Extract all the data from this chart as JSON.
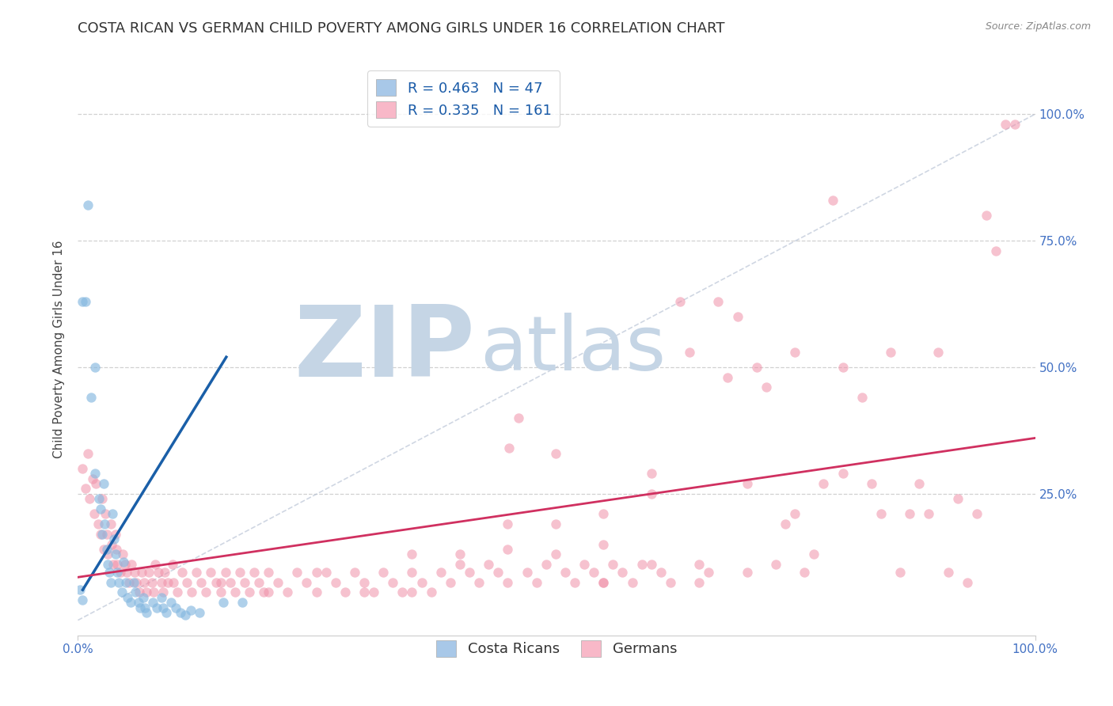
{
  "title": "COSTA RICAN VS GERMAN CHILD POVERTY AMONG GIRLS UNDER 16 CORRELATION CHART",
  "source": "Source: ZipAtlas.com",
  "ylabel": "Child Poverty Among Girls Under 16",
  "xlim": [
    0.0,
    1.0
  ],
  "ylim": [
    -0.03,
    1.1
  ],
  "xticks": [
    0.0,
    1.0
  ],
  "xticklabels": [
    "0.0%",
    "100.0%"
  ],
  "yticks": [
    0.25,
    0.5,
    0.75,
    1.0
  ],
  "yticklabels": [
    "25.0%",
    "50.0%",
    "75.0%",
    "100.0%"
  ],
  "cr_scatter_color": "#85b8e0",
  "cr_scatter_alpha": 0.65,
  "cr_scatter_size": 80,
  "cr_line_color": "#1a5fa8",
  "cr_line_x": [
    0.005,
    0.155
  ],
  "cr_line_y": [
    0.06,
    0.52
  ],
  "de_scatter_color": "#f090a8",
  "de_scatter_alpha": 0.55,
  "de_scatter_size": 80,
  "de_line_color": "#d03060",
  "de_line_x": [
    0.0,
    1.0
  ],
  "de_line_y": [
    0.085,
    0.36
  ],
  "diagonal_color": "#b0bcd0",
  "diagonal_alpha": 0.6,
  "watermark_zip_color": "#c5d5e5",
  "watermark_atlas_color": "#c5d5e5",
  "background_color": "#ffffff",
  "grid_color": "#cccccc",
  "title_fontsize": 13,
  "axis_label_fontsize": 11,
  "tick_label_fontsize": 11,
  "source_fontsize": 9,
  "legend_top_entries": [
    {
      "label_r": "R = 0.463",
      "label_n": "N = 47",
      "facecolor": "#a8c8e8"
    },
    {
      "label_r": "R = 0.335",
      "label_n": "N = 161",
      "facecolor": "#f8b8c8"
    }
  ],
  "cr_points": [
    [
      0.005,
      0.63
    ],
    [
      0.008,
      0.63
    ],
    [
      0.01,
      0.82
    ],
    [
      0.014,
      0.44
    ],
    [
      0.018,
      0.5
    ],
    [
      0.018,
      0.29
    ],
    [
      0.022,
      0.24
    ],
    [
      0.024,
      0.22
    ],
    [
      0.025,
      0.17
    ],
    [
      0.027,
      0.27
    ],
    [
      0.028,
      0.19
    ],
    [
      0.03,
      0.14
    ],
    [
      0.031,
      0.11
    ],
    [
      0.033,
      0.095
    ],
    [
      0.034,
      0.075
    ],
    [
      0.036,
      0.21
    ],
    [
      0.038,
      0.16
    ],
    [
      0.039,
      0.13
    ],
    [
      0.041,
      0.095
    ],
    [
      0.043,
      0.075
    ],
    [
      0.046,
      0.055
    ],
    [
      0.048,
      0.115
    ],
    [
      0.05,
      0.075
    ],
    [
      0.052,
      0.045
    ],
    [
      0.055,
      0.035
    ],
    [
      0.058,
      0.075
    ],
    [
      0.06,
      0.055
    ],
    [
      0.063,
      0.035
    ],
    [
      0.065,
      0.025
    ],
    [
      0.068,
      0.045
    ],
    [
      0.07,
      0.025
    ],
    [
      0.072,
      0.015
    ],
    [
      0.078,
      0.035
    ],
    [
      0.082,
      0.025
    ],
    [
      0.087,
      0.045
    ],
    [
      0.089,
      0.025
    ],
    [
      0.092,
      0.015
    ],
    [
      0.097,
      0.035
    ],
    [
      0.102,
      0.025
    ],
    [
      0.107,
      0.015
    ],
    [
      0.112,
      0.01
    ],
    [
      0.118,
      0.02
    ],
    [
      0.127,
      0.015
    ],
    [
      0.152,
      0.035
    ],
    [
      0.172,
      0.035
    ],
    [
      0.002,
      0.06
    ],
    [
      0.005,
      0.04
    ]
  ],
  "de_points": [
    [
      0.005,
      0.3
    ],
    [
      0.008,
      0.26
    ],
    [
      0.01,
      0.33
    ],
    [
      0.012,
      0.24
    ],
    [
      0.015,
      0.28
    ],
    [
      0.017,
      0.21
    ],
    [
      0.019,
      0.27
    ],
    [
      0.021,
      0.19
    ],
    [
      0.024,
      0.17
    ],
    [
      0.025,
      0.24
    ],
    [
      0.027,
      0.14
    ],
    [
      0.029,
      0.21
    ],
    [
      0.03,
      0.17
    ],
    [
      0.031,
      0.13
    ],
    [
      0.034,
      0.19
    ],
    [
      0.035,
      0.15
    ],
    [
      0.037,
      0.11
    ],
    [
      0.039,
      0.17
    ],
    [
      0.04,
      0.14
    ],
    [
      0.041,
      0.11
    ],
    [
      0.044,
      0.095
    ],
    [
      0.047,
      0.13
    ],
    [
      0.049,
      0.11
    ],
    [
      0.051,
      0.095
    ],
    [
      0.053,
      0.075
    ],
    [
      0.056,
      0.11
    ],
    [
      0.059,
      0.095
    ],
    [
      0.061,
      0.075
    ],
    [
      0.064,
      0.055
    ],
    [
      0.067,
      0.095
    ],
    [
      0.069,
      0.075
    ],
    [
      0.072,
      0.055
    ],
    [
      0.074,
      0.095
    ],
    [
      0.077,
      0.075
    ],
    [
      0.079,
      0.055
    ],
    [
      0.081,
      0.11
    ],
    [
      0.084,
      0.095
    ],
    [
      0.087,
      0.075
    ],
    [
      0.089,
      0.055
    ],
    [
      0.091,
      0.095
    ],
    [
      0.094,
      0.075
    ],
    [
      0.099,
      0.11
    ],
    [
      0.1,
      0.075
    ],
    [
      0.104,
      0.055
    ],
    [
      0.109,
      0.095
    ],
    [
      0.114,
      0.075
    ],
    [
      0.119,
      0.055
    ],
    [
      0.124,
      0.095
    ],
    [
      0.129,
      0.075
    ],
    [
      0.134,
      0.055
    ],
    [
      0.139,
      0.095
    ],
    [
      0.144,
      0.075
    ],
    [
      0.149,
      0.055
    ],
    [
      0.154,
      0.095
    ],
    [
      0.159,
      0.075
    ],
    [
      0.164,
      0.055
    ],
    [
      0.169,
      0.095
    ],
    [
      0.174,
      0.075
    ],
    [
      0.179,
      0.055
    ],
    [
      0.184,
      0.095
    ],
    [
      0.189,
      0.075
    ],
    [
      0.194,
      0.055
    ],
    [
      0.199,
      0.095
    ],
    [
      0.209,
      0.075
    ],
    [
      0.219,
      0.055
    ],
    [
      0.229,
      0.095
    ],
    [
      0.239,
      0.075
    ],
    [
      0.249,
      0.055
    ],
    [
      0.259,
      0.095
    ],
    [
      0.269,
      0.075
    ],
    [
      0.279,
      0.055
    ],
    [
      0.289,
      0.095
    ],
    [
      0.299,
      0.075
    ],
    [
      0.309,
      0.055
    ],
    [
      0.319,
      0.095
    ],
    [
      0.329,
      0.075
    ],
    [
      0.339,
      0.055
    ],
    [
      0.349,
      0.095
    ],
    [
      0.359,
      0.075
    ],
    [
      0.369,
      0.055
    ],
    [
      0.379,
      0.095
    ],
    [
      0.389,
      0.075
    ],
    [
      0.399,
      0.13
    ],
    [
      0.409,
      0.095
    ],
    [
      0.419,
      0.075
    ],
    [
      0.429,
      0.11
    ],
    [
      0.439,
      0.095
    ],
    [
      0.45,
      0.34
    ],
    [
      0.46,
      0.4
    ],
    [
      0.469,
      0.095
    ],
    [
      0.479,
      0.075
    ],
    [
      0.489,
      0.11
    ],
    [
      0.499,
      0.33
    ],
    [
      0.509,
      0.095
    ],
    [
      0.519,
      0.075
    ],
    [
      0.529,
      0.11
    ],
    [
      0.539,
      0.095
    ],
    [
      0.549,
      0.075
    ],
    [
      0.559,
      0.11
    ],
    [
      0.569,
      0.095
    ],
    [
      0.579,
      0.075
    ],
    [
      0.589,
      0.11
    ],
    [
      0.599,
      0.25
    ],
    [
      0.609,
      0.095
    ],
    [
      0.619,
      0.075
    ],
    [
      0.629,
      0.63
    ],
    [
      0.639,
      0.53
    ],
    [
      0.649,
      0.11
    ],
    [
      0.659,
      0.095
    ],
    [
      0.669,
      0.63
    ],
    [
      0.679,
      0.48
    ],
    [
      0.689,
      0.6
    ],
    [
      0.699,
      0.27
    ],
    [
      0.709,
      0.5
    ],
    [
      0.719,
      0.46
    ],
    [
      0.729,
      0.11
    ],
    [
      0.739,
      0.19
    ],
    [
      0.749,
      0.53
    ],
    [
      0.759,
      0.095
    ],
    [
      0.769,
      0.13
    ],
    [
      0.779,
      0.27
    ],
    [
      0.789,
      0.83
    ],
    [
      0.799,
      0.5
    ],
    [
      0.819,
      0.44
    ],
    [
      0.829,
      0.27
    ],
    [
      0.839,
      0.21
    ],
    [
      0.849,
      0.53
    ],
    [
      0.859,
      0.095
    ],
    [
      0.869,
      0.21
    ],
    [
      0.879,
      0.27
    ],
    [
      0.889,
      0.21
    ],
    [
      0.899,
      0.53
    ],
    [
      0.909,
      0.095
    ],
    [
      0.919,
      0.24
    ],
    [
      0.929,
      0.075
    ],
    [
      0.939,
      0.21
    ],
    [
      0.949,
      0.8
    ],
    [
      0.959,
      0.73
    ],
    [
      0.969,
      0.98
    ],
    [
      0.979,
      0.98
    ],
    [
      0.499,
      0.19
    ],
    [
      0.549,
      0.15
    ],
    [
      0.349,
      0.13
    ],
    [
      0.399,
      0.11
    ],
    [
      0.449,
      0.075
    ],
    [
      0.149,
      0.075
    ],
    [
      0.199,
      0.055
    ],
    [
      0.249,
      0.095
    ],
    [
      0.299,
      0.055
    ],
    [
      0.449,
      0.14
    ],
    [
      0.549,
      0.21
    ],
    [
      0.599,
      0.29
    ],
    [
      0.649,
      0.075
    ],
    [
      0.699,
      0.095
    ],
    [
      0.749,
      0.21
    ],
    [
      0.799,
      0.29
    ],
    [
      0.349,
      0.055
    ],
    [
      0.449,
      0.19
    ],
    [
      0.499,
      0.13
    ],
    [
      0.549,
      0.075
    ],
    [
      0.599,
      0.11
    ]
  ]
}
